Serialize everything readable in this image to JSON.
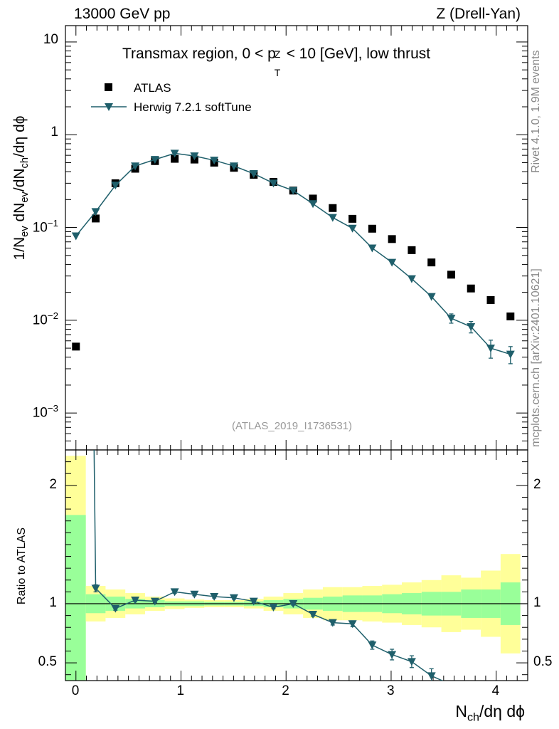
{
  "header": {
    "left": "13000 GeV pp",
    "right": "Z (Drell-Yan)"
  },
  "side_text": {
    "rivet": "Rivet 4.1.0,  1.9M events",
    "mcplots": "mcplots.cern.ch [arXiv:2401.10621]"
  },
  "chart_data": {
    "type": "scatter",
    "title": "Transmax region, 0 < pT^Z < 10 [GeV], low thrust",
    "title_parts": {
      "a": "Transmax region, 0 < p",
      "sup": "Z",
      "sub": "T",
      "b": " < 10 [GeV], low thrust"
    },
    "analysis_id": "(ATLAS_2019_I1736531)",
    "xlabel": "N_ch/dη dϕ",
    "xlabel_parts": {
      "n": "N",
      "sub": "ch",
      "rest": "/dη dϕ"
    },
    "ylabel": "1/N_ev dN_ev/dN_ch/dη dϕ",
    "ylabel_parts": {
      "a": "1/N",
      "sub1": "ev",
      "b": " dN",
      "sub2": "ev",
      "c": "/dN",
      "sub3": "ch",
      "d": "/dη dϕ"
    },
    "xlim": [
      -0.1,
      4.3
    ],
    "ylim": [
      0.0004,
      15
    ],
    "yscale": "log",
    "x_ticks": [
      0,
      1,
      2,
      3,
      4
    ],
    "x_tick_labels": [
      "0",
      "1",
      "2",
      "3",
      "4"
    ],
    "y_tick_labels": [
      "10",
      "1",
      "10^-1",
      "10^-2",
      "10^-3"
    ],
    "y_tick_parts": [
      {
        "base": "10",
        "exp": ""
      },
      {
        "base": "1",
        "exp": ""
      },
      {
        "base": "10",
        "exp": "−1"
      },
      {
        "base": "10",
        "exp": "−2"
      },
      {
        "base": "10",
        "exp": "−3"
      }
    ],
    "y_tick_values": [
      10,
      1,
      0.1,
      0.01,
      0.001
    ],
    "legend_position": "top-left",
    "series": [
      {
        "name": "ATLAS",
        "marker": "square",
        "color": "#000000",
        "x": [
          0,
          0.188,
          0.376,
          0.564,
          0.752,
          0.94,
          1.128,
          1.316,
          1.504,
          1.692,
          1.88,
          2.068,
          2.256,
          2.444,
          2.632,
          2.82,
          3.008,
          3.196,
          3.384,
          3.572,
          3.76,
          3.948,
          4.136
        ],
        "y": [
          0.0052,
          0.125,
          0.3,
          0.43,
          0.52,
          0.55,
          0.54,
          0.5,
          0.44,
          0.37,
          0.31,
          0.25,
          0.205,
          0.162,
          0.124,
          0.097,
          0.075,
          0.057,
          0.042,
          0.031,
          0.022,
          0.0165,
          0.011
        ]
      },
      {
        "name": "Herwig 7.2.1 softTune",
        "marker": "triangle-down",
        "color": "#1f5f6b",
        "x": [
          0,
          0.188,
          0.376,
          0.564,
          0.752,
          0.94,
          1.128,
          1.316,
          1.504,
          1.692,
          1.88,
          2.068,
          2.256,
          2.444,
          2.632,
          2.82,
          3.008,
          3.196,
          3.384,
          3.572,
          3.76,
          3.948,
          4.136
        ],
        "y": [
          0.081,
          0.148,
          0.285,
          0.46,
          0.54,
          0.63,
          0.59,
          0.53,
          0.46,
          0.38,
          0.3,
          0.25,
          0.18,
          0.128,
          0.098,
          0.06,
          0.042,
          0.028,
          0.018,
          0.0105,
          0.0085,
          0.005,
          0.0043
        ],
        "yerr": [
          0,
          0,
          0,
          0,
          0,
          0,
          0,
          0,
          0,
          0,
          0,
          0,
          0,
          0,
          0,
          0,
          0,
          0,
          0,
          0.0012,
          0.0012,
          0.0011,
          0.0009
        ]
      }
    ],
    "ratio_panel": {
      "ylabel": "Ratio to ATLAS",
      "ylim": [
        0.35,
        2.3
      ],
      "y_ticks": [
        0.5,
        1,
        2
      ],
      "y_tick_labels": [
        "0.5",
        "1",
        "2"
      ],
      "bin_edges": [
        -0.1,
        0.094,
        0.282,
        0.47,
        0.658,
        0.846,
        1.034,
        1.222,
        1.41,
        1.598,
        1.786,
        1.974,
        2.162,
        2.35,
        2.538,
        2.726,
        2.914,
        3.102,
        3.29,
        3.478,
        3.666,
        3.854,
        4.042,
        4.23
      ],
      "band_stat_low": [
        0.1,
        0.92,
        0.94,
        0.96,
        0.97,
        0.98,
        0.98,
        0.985,
        0.985,
        0.98,
        0.97,
        0.96,
        0.95,
        0.94,
        0.93,
        0.93,
        0.92,
        0.91,
        0.9,
        0.9,
        0.88,
        0.88,
        0.82
      ],
      "band_stat_high": [
        1.75,
        1.08,
        1.06,
        1.04,
        1.03,
        1.02,
        1.02,
        1.015,
        1.015,
        1.02,
        1.03,
        1.04,
        1.05,
        1.06,
        1.07,
        1.07,
        1.08,
        1.09,
        1.1,
        1.1,
        1.12,
        1.12,
        1.18
      ],
      "band_total_low": [
        0.1,
        0.85,
        0.88,
        0.91,
        0.94,
        0.955,
        0.965,
        0.97,
        0.97,
        0.96,
        0.94,
        0.91,
        0.88,
        0.86,
        0.86,
        0.85,
        0.84,
        0.82,
        0.8,
        0.76,
        0.78,
        0.72,
        0.58
      ],
      "band_total_high": [
        2.25,
        1.15,
        1.12,
        1.09,
        1.06,
        1.045,
        1.035,
        1.03,
        1.03,
        1.04,
        1.06,
        1.09,
        1.12,
        1.14,
        1.14,
        1.15,
        1.16,
        1.18,
        1.2,
        1.24,
        1.22,
        1.28,
        1.42
      ],
      "band_colors": {
        "stat": "#99ff99",
        "total": "#ffff99"
      },
      "herwig_ratio": {
        "x": [
          0.188,
          0.376,
          0.564,
          0.752,
          0.94,
          1.128,
          1.316,
          1.504,
          1.692,
          1.88,
          2.068,
          2.256,
          2.444,
          2.632,
          2.82,
          3.008,
          3.196,
          3.384,
          3.51
        ],
        "y": [
          1.13,
          0.96,
          1.03,
          1.02,
          1.1,
          1.08,
          1.06,
          1.05,
          1.02,
          0.97,
          1.0,
          0.91,
          0.84,
          0.83,
          0.65,
          0.57,
          0.51,
          0.39,
          0.34
        ],
        "yerr": [
          0.03,
          0.015,
          0.012,
          0.012,
          0.012,
          0.012,
          0.012,
          0.012,
          0.012,
          0.012,
          0.012,
          0.015,
          0.02,
          0.025,
          0.035,
          0.045,
          0.05,
          0.06,
          0
        ]
      },
      "herwig_first_point": {
        "x": 0.0,
        "y": 15.6
      }
    }
  }
}
